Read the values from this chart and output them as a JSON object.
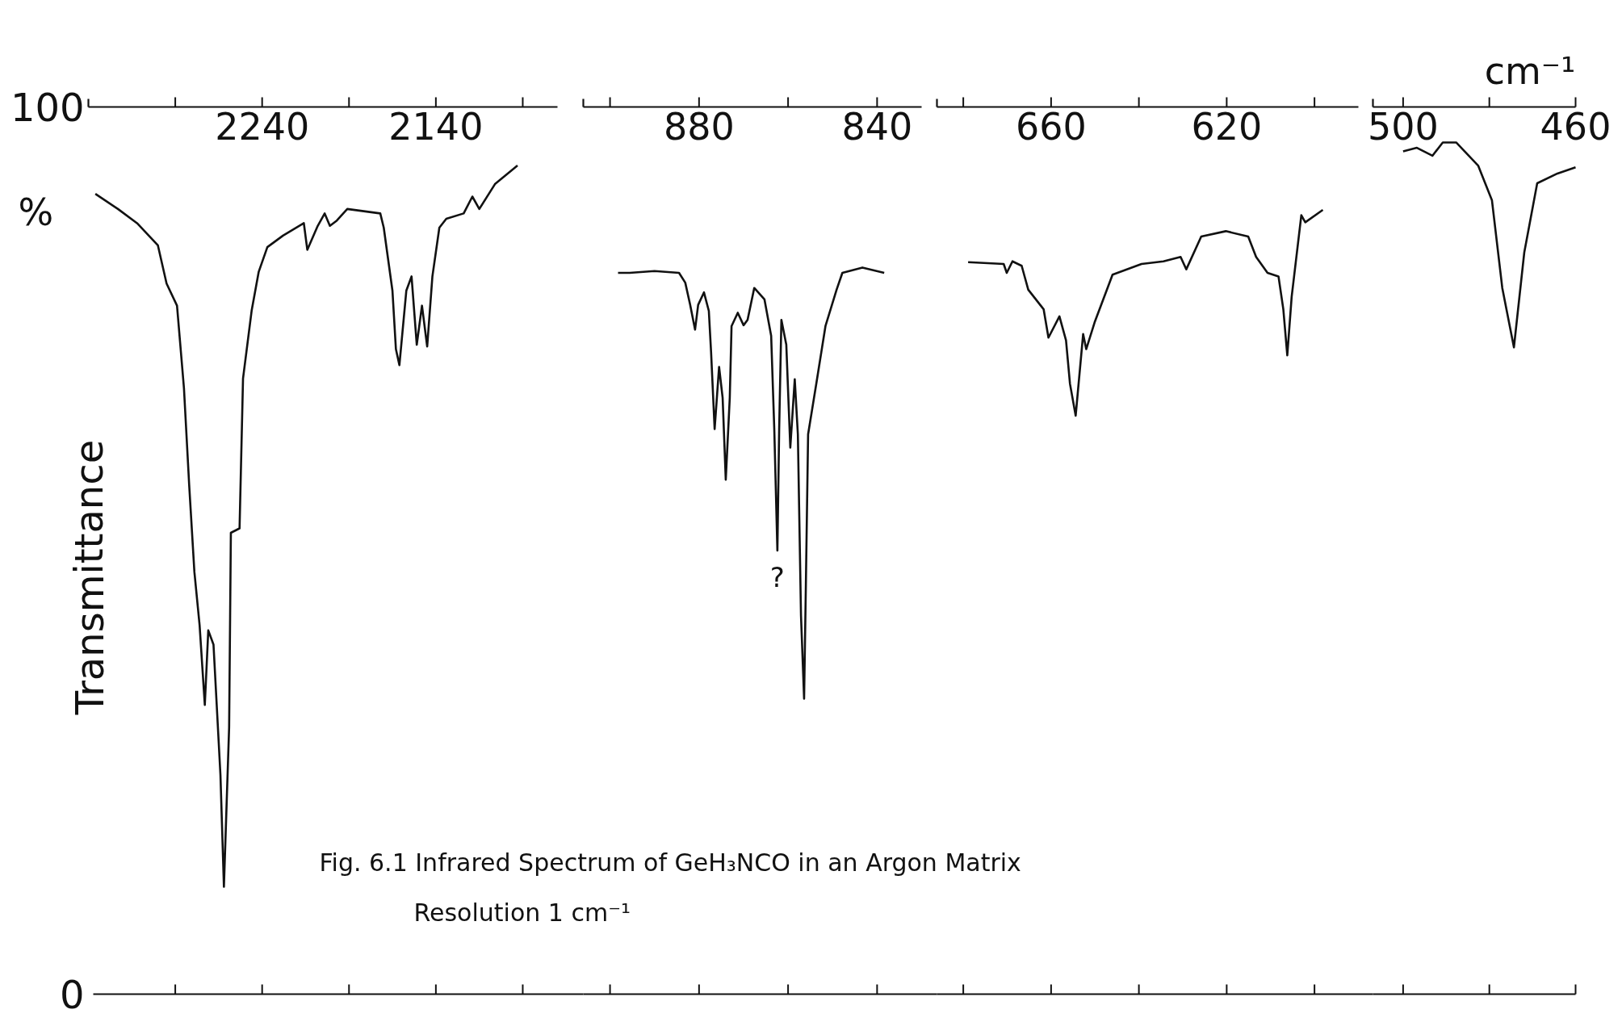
{
  "chart_data": [
    {
      "type": "line",
      "ylabel": "Transmittance",
      "annotations": [
        "%",
        "Fig. 6.1 Infrared Spectrum of GeH₃NCO in an Argon Matrix",
        "Resolution 1 cm⁻¹"
      ],
      "xlim": [
        2340,
        2070
      ],
      "ylim": [
        0,
        100
      ],
      "yticks": [
        0,
        100
      ],
      "xticks": [
        {
          "value": 2290,
          "label": null
        },
        2240,
        {
          "value": 2190,
          "label": null
        },
        2140,
        {
          "value": 2090,
          "label": null
        }
      ],
      "series": [
        {
          "color": "#111111",
          "x": [
            2336,
            2323,
            2312,
            2300,
            2295,
            2289,
            2285,
            2282,
            2279,
            2276,
            2273,
            2271,
            2268,
            2264,
            2262,
            2259,
            2258,
            2253,
            2251,
            2246,
            2242,
            2237,
            2228,
            2216,
            2214,
            2208,
            2204,
            2201,
            2197,
            2191,
            2172,
            2170,
            2165,
            2163,
            2161,
            2157,
            2154,
            2151,
            2148,
            2145,
            2142,
            2138,
            2134,
            2124,
            2119,
            2115,
            2106,
            2093
          ],
          "values": [
            90.2,
            88.5,
            86.9,
            84.4,
            80.1,
            77.6,
            68.3,
            57.4,
            47.6,
            41.6,
            32.6,
            41.0,
            39.4,
            24.7,
            12.1,
            30.1,
            52.0,
            52.5,
            69.4,
            77.1,
            81.4,
            84.2,
            85.5,
            86.9,
            83.9,
            86.6,
            88.0,
            86.6,
            87.2,
            88.5,
            88.0,
            86.4,
            79.3,
            72.7,
            70.9,
            79.3,
            80.9,
            73.2,
            77.6,
            73.0,
            80.9,
            86.4,
            87.4,
            88.0,
            89.9,
            88.5,
            91.3,
            93.4
          ]
        }
      ]
    },
    {
      "type": "line",
      "tick_labels": "x",
      "annotations": [
        {
          "text": "?",
          "x": 862.4,
          "y": 50.0
        }
      ],
      "xlim": [
        906,
        830
      ],
      "ylim": [
        0,
        100
      ],
      "xticks": [
        {
          "value": 900,
          "label": null
        },
        880,
        {
          "value": 860,
          "label": null
        },
        840
      ],
      "series": [
        {
          "color": "#111111",
          "x": [
            898.2,
            895.6,
            890.0,
            884.5,
            883.1,
            882.0,
            880.9,
            880.2,
            878.9,
            877.8,
            877.3,
            876.5,
            875.5,
            874.7,
            874.0,
            873.1,
            872.7,
            871.3,
            870.0,
            869.1,
            867.6,
            865.3,
            863.8,
            863.1,
            862.4,
            862.0,
            861.5,
            860.4,
            859.5,
            858.5,
            857.8,
            857.1,
            856.4,
            856.0,
            855.5,
            853.6,
            851.6,
            849.1,
            847.8,
            843.3,
            838.4
          ],
          "values": [
            81.3,
            81.3,
            81.5,
            81.3,
            80.2,
            77.7,
            74.9,
            77.7,
            79.1,
            77.0,
            72.4,
            63.7,
            70.7,
            67.2,
            58.0,
            67.2,
            75.3,
            76.8,
            75.4,
            76.0,
            79.6,
            78.3,
            74.2,
            63.7,
            50.0,
            63.7,
            76.0,
            73.2,
            61.6,
            69.3,
            63.1,
            42.7,
            33.3,
            46.2,
            63.1,
            69.0,
            75.3,
            79.4,
            81.3,
            81.9,
            81.3
          ]
        }
      ]
    },
    {
      "type": "line",
      "tick_labels": "x",
      "xlim": [
        686,
        590
      ],
      "ylim": [
        0,
        100
      ],
      "xticks": [
        {
          "value": 680,
          "label": null
        },
        660,
        {
          "value": 640,
          "label": null
        },
        620,
        {
          "value": 600,
          "label": null
        }
      ],
      "series": [
        {
          "color": "#111111",
          "x": [
            678.9,
            670.8,
            670.1,
            668.8,
            666.7,
            665.2,
            661.7,
            660.6,
            658.1,
            656.6,
            655.7,
            654.4,
            652.7,
            652.0,
            650.1,
            646.0,
            639.4,
            634.4,
            630.5,
            629.2,
            625.8,
            620.2,
            615.1,
            613.3,
            610.7,
            608.2,
            607.1,
            606.2,
            605.2,
            603.0,
            602.1,
            598.1
          ],
          "values": [
            82.5,
            82.3,
            81.3,
            82.6,
            82.1,
            79.4,
            77.2,
            74.0,
            76.4,
            73.7,
            68.8,
            65.2,
            74.4,
            72.7,
            75.7,
            81.1,
            82.3,
            82.6,
            83.1,
            81.7,
            85.4,
            86.0,
            85.4,
            83.1,
            81.3,
            80.9,
            77.2,
            72.0,
            78.6,
            87.8,
            87.0,
            88.4
          ]
        }
      ]
    },
    {
      "type": "line",
      "tick_labels": "x",
      "xlabel": "cm⁻¹",
      "xlim": [
        507,
        460
      ],
      "ylim": [
        0,
        100
      ],
      "xticks": [
        500,
        {
          "value": 480,
          "label": null
        },
        460
      ],
      "series": [
        {
          "color": "#111111",
          "x": [
            500.0,
            496.8,
            493.2,
            490.8,
            487.7,
            482.6,
            479.4,
            477.0,
            474.3,
            471.9,
            468.9,
            464.2,
            460.0
          ],
          "values": [
            95.0,
            95.4,
            94.5,
            96.0,
            96.0,
            93.4,
            89.5,
            79.6,
            72.9,
            83.6,
            91.4,
            92.5,
            93.2
          ]
        }
      ]
    }
  ]
}
